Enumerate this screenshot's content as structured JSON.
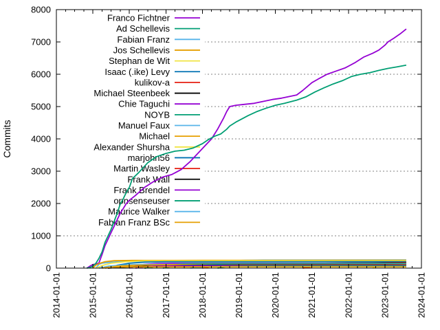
{
  "chart_data": {
    "type": "line",
    "title": "",
    "xlabel": "",
    "ylabel": "Commits",
    "ylim": [
      0,
      8000
    ],
    "ytick_step": 1000,
    "ytick_labels": [
      "0",
      "1000",
      "2000",
      "3000",
      "4000",
      "5000",
      "6000",
      "7000",
      "8000"
    ],
    "xtick_labels": [
      "2014-01-01",
      "2015-01-01",
      "2016-01-01",
      "2017-01-01",
      "2018-01-01",
      "2019-01-01",
      "2020-01-01",
      "2021-01-01",
      "2022-01-01",
      "2023-01-01",
      "2024-01-01"
    ],
    "x_minor_ticks_per_year": 3,
    "grid": "horizontal dotted gray at each 1000",
    "legend_position": "top-left-inside-opaque",
    "grid_color": "#808080",
    "border_color": "#000000",
    "series": [
      {
        "name": "Franco Fichtner",
        "color": "#9400d3",
        "points": [
          [
            "2014-11",
            0
          ],
          [
            "2014-12",
            60
          ],
          [
            "2015-01",
            110
          ],
          [
            "2015-02",
            125
          ],
          [
            "2015-03",
            160
          ],
          [
            "2015-04",
            420
          ],
          [
            "2015-05",
            700
          ],
          [
            "2015-06",
            900
          ],
          [
            "2015-07",
            1100
          ],
          [
            "2015-08",
            1300
          ],
          [
            "2015-09",
            1500
          ],
          [
            "2015-10",
            1700
          ],
          [
            "2015-11",
            1850
          ],
          [
            "2015-12",
            2000
          ],
          [
            "2016-01",
            2100
          ],
          [
            "2016-03",
            2250
          ],
          [
            "2016-06",
            2500
          ],
          [
            "2016-09",
            2680
          ],
          [
            "2016-12",
            2820
          ],
          [
            "2017-03",
            2900
          ],
          [
            "2017-06",
            3050
          ],
          [
            "2017-09",
            3300
          ],
          [
            "2017-12",
            3600
          ],
          [
            "2018-02",
            3800
          ],
          [
            "2018-04",
            4000
          ],
          [
            "2018-06",
            4300
          ],
          [
            "2018-08",
            4650
          ],
          [
            "2018-09",
            4850
          ],
          [
            "2018-10",
            5000
          ],
          [
            "2018-12",
            5040
          ],
          [
            "2019-03",
            5070
          ],
          [
            "2019-06",
            5100
          ],
          [
            "2019-09",
            5160
          ],
          [
            "2019-12",
            5220
          ],
          [
            "2020-03",
            5260
          ],
          [
            "2020-06",
            5320
          ],
          [
            "2020-08",
            5360
          ],
          [
            "2020-10",
            5500
          ],
          [
            "2021-01",
            5740
          ],
          [
            "2021-03",
            5850
          ],
          [
            "2021-06",
            6000
          ],
          [
            "2021-09",
            6100
          ],
          [
            "2021-12",
            6200
          ],
          [
            "2022-03",
            6350
          ],
          [
            "2022-06",
            6530
          ],
          [
            "2022-09",
            6650
          ],
          [
            "2022-11",
            6750
          ],
          [
            "2023-01",
            6900
          ],
          [
            "2023-02",
            7000
          ],
          [
            "2023-04",
            7120
          ],
          [
            "2023-06",
            7250
          ],
          [
            "2023-08",
            7400
          ]
        ]
      },
      {
        "name": "Ad Schellevis",
        "color": "#009e73",
        "points": [
          [
            "2014-11",
            0
          ],
          [
            "2014-12",
            20
          ],
          [
            "2015-01",
            60
          ],
          [
            "2015-02",
            150
          ],
          [
            "2015-03",
            300
          ],
          [
            "2015-04",
            500
          ],
          [
            "2015-05",
            800
          ],
          [
            "2015-06",
            1000
          ],
          [
            "2015-07",
            1200
          ],
          [
            "2015-08",
            1450
          ],
          [
            "2015-09",
            1700
          ],
          [
            "2015-10",
            1980
          ],
          [
            "2015-11",
            2150
          ],
          [
            "2015-12",
            2350
          ],
          [
            "2016-01",
            2500
          ],
          [
            "2016-02",
            2770
          ],
          [
            "2016-04",
            2950
          ],
          [
            "2016-07",
            3260
          ],
          [
            "2016-10",
            3450
          ],
          [
            "2017-01",
            3550
          ],
          [
            "2017-04",
            3620
          ],
          [
            "2017-07",
            3650
          ],
          [
            "2017-10",
            3720
          ],
          [
            "2018-01",
            3850
          ],
          [
            "2018-03",
            3980
          ],
          [
            "2018-05",
            4080
          ],
          [
            "2018-07",
            4150
          ],
          [
            "2018-09",
            4300
          ],
          [
            "2018-10",
            4400
          ],
          [
            "2018-12",
            4520
          ],
          [
            "2019-02",
            4620
          ],
          [
            "2019-04",
            4720
          ],
          [
            "2019-07",
            4850
          ],
          [
            "2019-10",
            4950
          ],
          [
            "2020-01",
            5040
          ],
          [
            "2020-04",
            5100
          ],
          [
            "2020-08",
            5200
          ],
          [
            "2020-11",
            5300
          ],
          [
            "2021-02",
            5450
          ],
          [
            "2021-05",
            5580
          ],
          [
            "2021-08",
            5700
          ],
          [
            "2021-11",
            5800
          ],
          [
            "2022-02",
            5930
          ],
          [
            "2022-05",
            6000
          ],
          [
            "2022-08",
            6050
          ],
          [
            "2022-11",
            6120
          ],
          [
            "2023-02",
            6180
          ],
          [
            "2023-05",
            6230
          ],
          [
            "2023-08",
            6280
          ]
        ]
      },
      {
        "name": "Fabian Franz",
        "color": "#56b4e9",
        "points": [
          [
            "2015-02",
            0
          ],
          [
            "2015-03",
            120
          ],
          [
            "2015-04",
            150
          ],
          [
            "2015-06",
            175
          ],
          [
            "2015-09",
            195
          ],
          [
            "2016-01",
            205
          ],
          [
            "2017-01",
            210
          ],
          [
            "2018-06",
            215
          ],
          [
            "2019-03",
            240
          ],
          [
            "2019-09",
            250
          ],
          [
            "2023-08",
            255
          ]
        ]
      },
      {
        "name": "Jos Schellevis",
        "color": "#e69f00",
        "points": [
          [
            "2015-01",
            0
          ],
          [
            "2015-02",
            95
          ],
          [
            "2015-03",
            140
          ],
          [
            "2015-05",
            200
          ],
          [
            "2015-08",
            230
          ],
          [
            "2016-02",
            238
          ],
          [
            "2018-01",
            240
          ],
          [
            "2023-08",
            245
          ]
        ]
      },
      {
        "name": "Stephan de Wit",
        "color": "#f0e442",
        "points": [
          [
            "2015-02",
            0
          ],
          [
            "2015-04",
            80
          ],
          [
            "2015-07",
            150
          ],
          [
            "2015-12",
            200
          ],
          [
            "2016-06",
            225
          ],
          [
            "2023-08",
            230
          ]
        ]
      },
      {
        "name": "Isaac (.ike) Levy",
        "color": "#0072b2",
        "points": [
          [
            "2015-06",
            0
          ],
          [
            "2015-09",
            90
          ],
          [
            "2016-01",
            150
          ],
          [
            "2016-06",
            185
          ],
          [
            "2017-01",
            195
          ],
          [
            "2023-08",
            200
          ]
        ]
      },
      {
        "name": "kulikov-a",
        "color": "#e51e10",
        "points": [
          [
            "2020-10",
            0
          ],
          [
            "2021-01",
            40
          ],
          [
            "2021-04",
            70
          ],
          [
            "2021-08",
            100
          ],
          [
            "2021-12",
            125
          ],
          [
            "2022-04",
            140
          ],
          [
            "2022-08",
            148
          ],
          [
            "2022-11",
            155
          ],
          [
            "2023-02",
            165
          ],
          [
            "2023-05",
            170
          ],
          [
            "2023-08",
            175
          ]
        ]
      },
      {
        "name": "Michael Steenbeek",
        "color": "#000000",
        "points": [
          [
            "2016-06",
            0
          ],
          [
            "2016-09",
            40
          ],
          [
            "2017-03",
            70
          ],
          [
            "2018-01",
            100
          ],
          [
            "2019-01",
            120
          ],
          [
            "2020-01",
            135
          ],
          [
            "2021-01",
            148
          ],
          [
            "2022-01",
            155
          ],
          [
            "2023-08",
            160
          ]
        ]
      },
      {
        "name": "Chie Taguchi",
        "color": "#9400d3",
        "points": [
          [
            "2016-01",
            0
          ],
          [
            "2016-03",
            60
          ],
          [
            "2016-06",
            120
          ],
          [
            "2016-10",
            140
          ],
          [
            "2017-03",
            148
          ],
          [
            "2023-08",
            150
          ]
        ]
      },
      {
        "name": "NOYB",
        "color": "#009e73",
        "points": [
          [
            "2016-06",
            0
          ],
          [
            "2016-10",
            60
          ],
          [
            "2017-02",
            100
          ],
          [
            "2017-06",
            130
          ],
          [
            "2017-12",
            140
          ],
          [
            "2023-08",
            145
          ]
        ]
      },
      {
        "name": "Manuel Faux",
        "color": "#56b4e9",
        "points": [
          [
            "2015-03",
            0
          ],
          [
            "2015-06",
            60
          ],
          [
            "2015-12",
            100
          ],
          [
            "2016-06",
            115
          ],
          [
            "2023-08",
            120
          ]
        ]
      },
      {
        "name": "Michael",
        "color": "#e69f00",
        "points": [
          [
            "2015-05",
            0
          ],
          [
            "2015-09",
            60
          ],
          [
            "2016-03",
            90
          ],
          [
            "2016-12",
            105
          ],
          [
            "2017-12",
            112
          ],
          [
            "2023-08",
            115
          ]
        ]
      },
      {
        "name": "Alexander Shursha",
        "color": "#f0e442",
        "points": [
          [
            "2022-09",
            0
          ],
          [
            "2022-10",
            40
          ],
          [
            "2022-11",
            70
          ],
          [
            "2023-01",
            95
          ],
          [
            "2023-03",
            105
          ],
          [
            "2023-08",
            110
          ]
        ]
      },
      {
        "name": "marjohn56",
        "color": "#0072b2",
        "points": [
          [
            "2016-12",
            0
          ],
          [
            "2017-03",
            50
          ],
          [
            "2017-06",
            80
          ],
          [
            "2017-12",
            95
          ],
          [
            "2018-06",
            102
          ],
          [
            "2023-08",
            105
          ]
        ]
      },
      {
        "name": "Martin Wasley",
        "color": "#e51e10",
        "points": [
          [
            "2018-01",
            0
          ],
          [
            "2018-04",
            50
          ],
          [
            "2018-08",
            80
          ],
          [
            "2019-01",
            90
          ],
          [
            "2023-08",
            95
          ]
        ]
      },
      {
        "name": "Frank Wall",
        "color": "#000000",
        "points": [
          [
            "2015-06",
            0
          ],
          [
            "2015-12",
            35
          ],
          [
            "2016-06",
            55
          ],
          [
            "2017-06",
            70
          ],
          [
            "2018-06",
            78
          ],
          [
            "2023-08",
            80
          ]
        ]
      },
      {
        "name": "Frank Brendel",
        "color": "#9400d3",
        "points": [
          [
            "2016-03",
            0
          ],
          [
            "2016-06",
            40
          ],
          [
            "2016-09",
            60
          ],
          [
            "2017-03",
            68
          ],
          [
            "2023-08",
            70
          ]
        ]
      },
      {
        "name": "opnsenseuser",
        "color": "#009e73",
        "points": [
          [
            "2018-06",
            0
          ],
          [
            "2018-08",
            35
          ],
          [
            "2018-10",
            50
          ],
          [
            "2019-02",
            58
          ],
          [
            "2019-06",
            63
          ],
          [
            "2023-08",
            65
          ]
        ]
      },
      {
        "name": "Maurice Walker",
        "color": "#56b4e9",
        "points": [
          [
            "2017-09",
            0
          ],
          [
            "2017-12",
            25
          ],
          [
            "2018-03",
            45
          ],
          [
            "2018-08",
            52
          ],
          [
            "2023-08",
            55
          ]
        ]
      },
      {
        "name": "Fabian Franz BSc",
        "color": "#e69f00",
        "points": [
          [
            "2015-04",
            0
          ],
          [
            "2015-06",
            25
          ],
          [
            "2015-08",
            35
          ],
          [
            "2016-01",
            38
          ],
          [
            "2023-08",
            40
          ]
        ]
      }
    ]
  }
}
